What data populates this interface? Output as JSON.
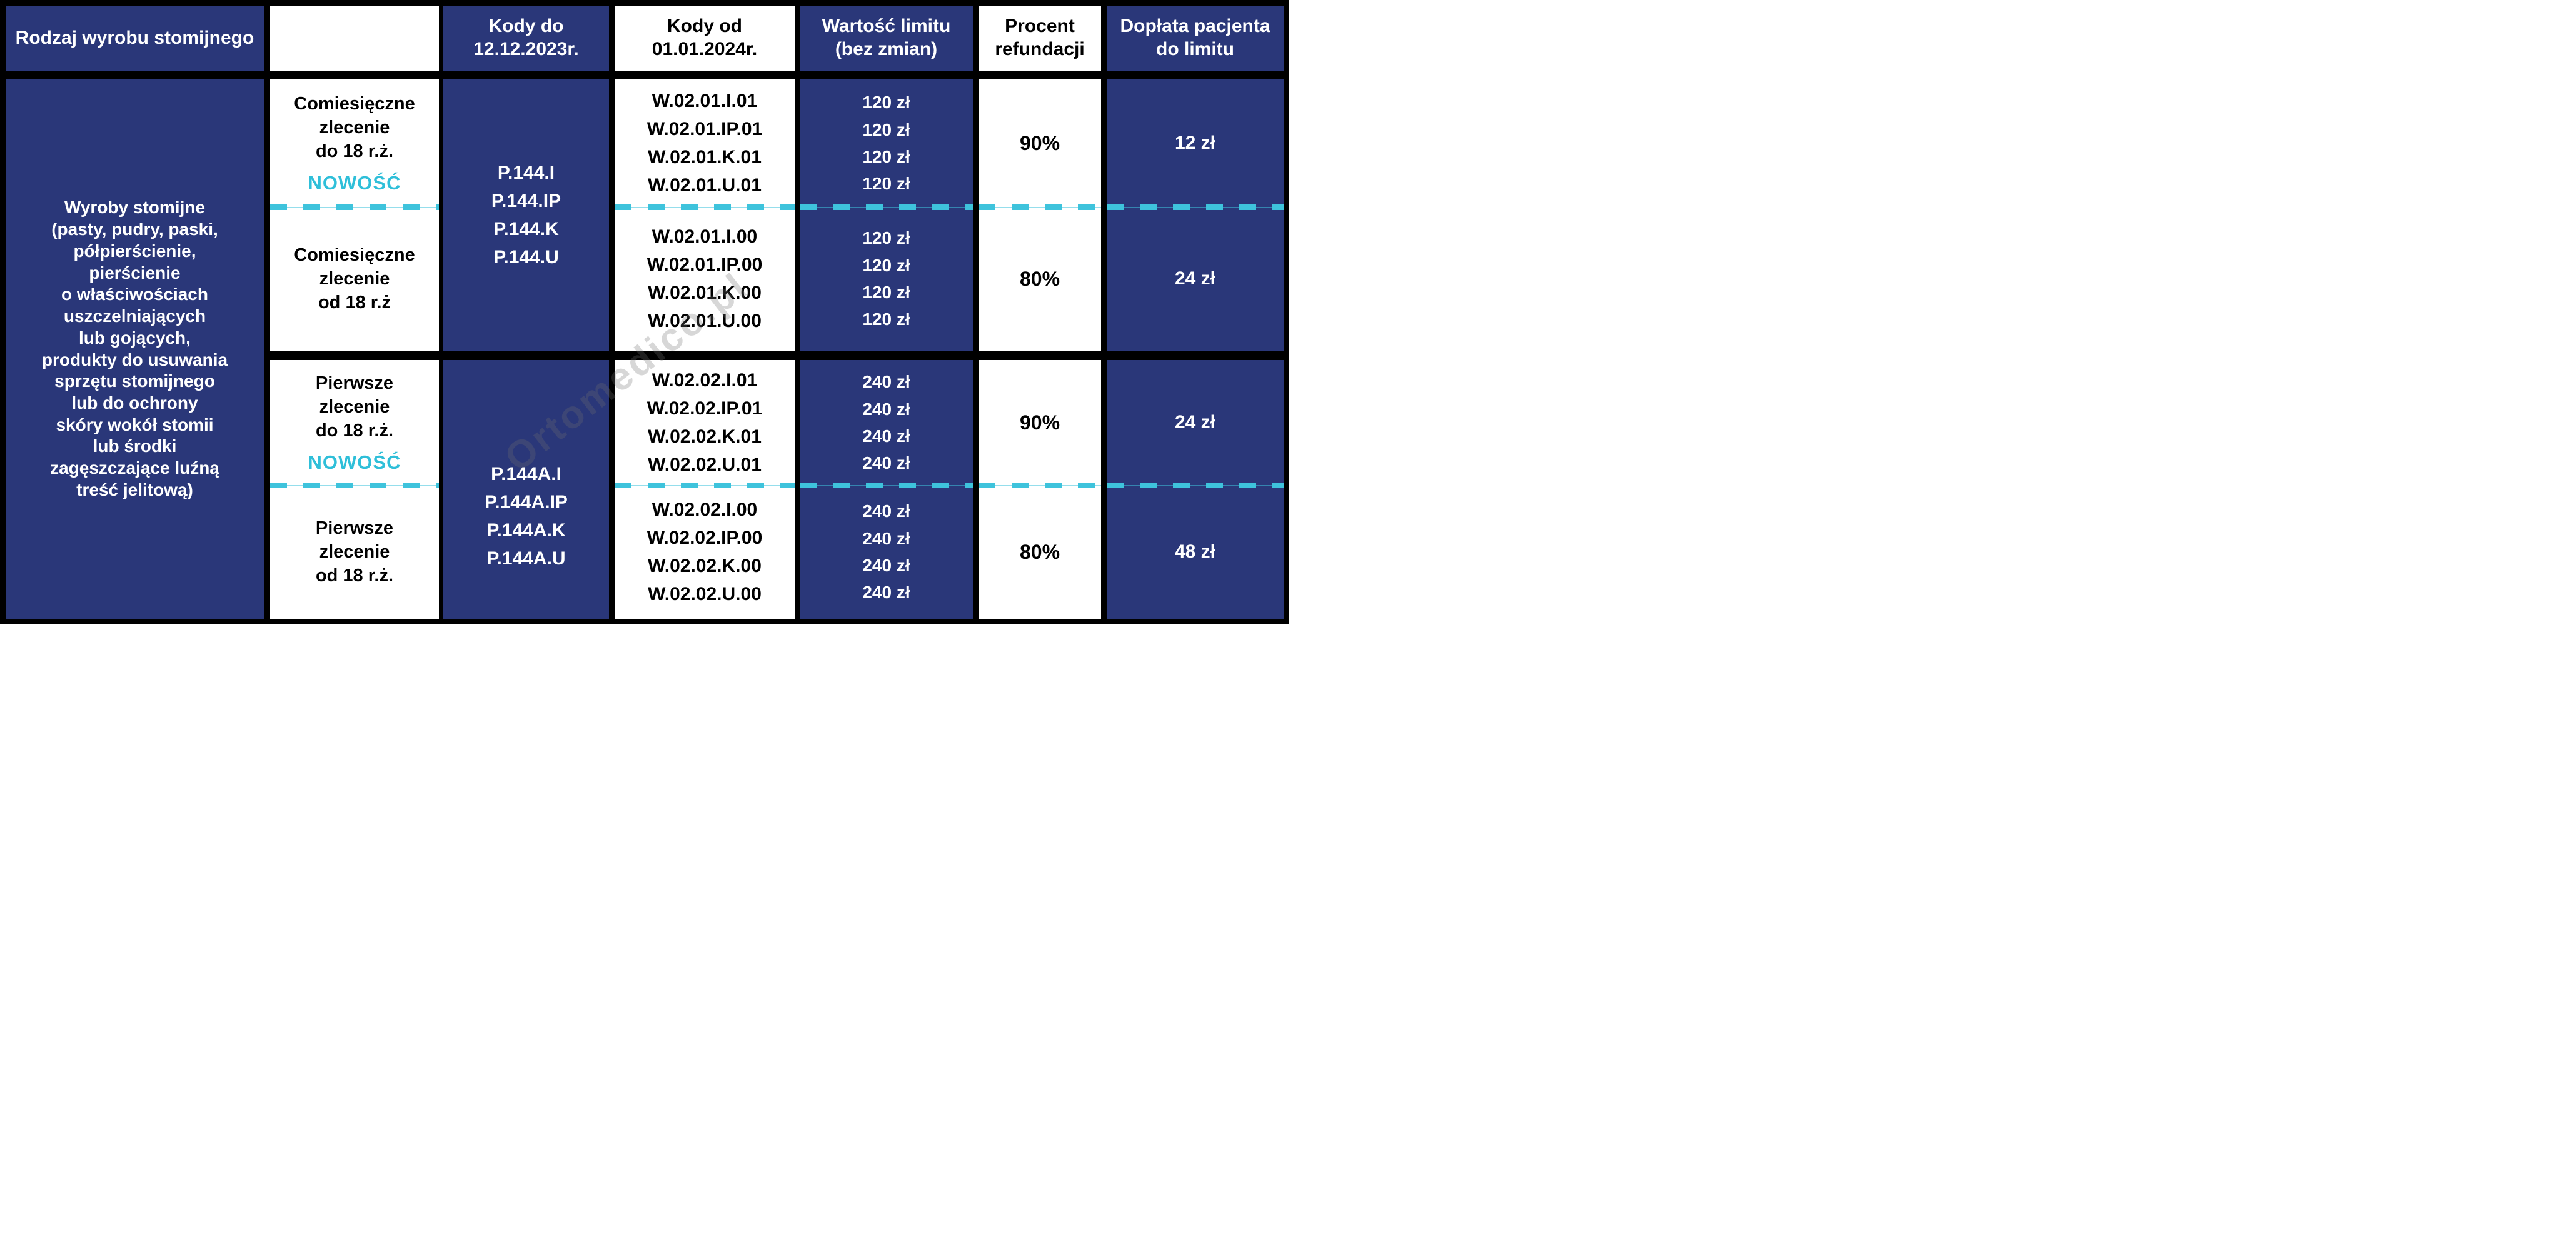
{
  "table": {
    "headers": {
      "product_type": "Rodzaj wyrobu stomijnego",
      "order_type": "",
      "codes_until": "Kody do 12.12.2023r.",
      "codes_from": "Kody od 01.01.2024r.",
      "limit_value": "Wartość limitu (bez zmian)",
      "refund_percent": "Procent refundacji",
      "patient_copay": "Dopłata pacjenta do limitu"
    },
    "product_category": "Wyroby stomijne\n(pasty, pudry, paski,\npółpierścienie,\npierścienie\no właściwościach\nuszczelniających\nlub gojących,\nprodukty do usuwania\nsprzętu stomijnego\nlub do ochrony\nskóry wokół stomii\nlub środki\nzagęszczające luźną\ntreść jelitową)",
    "sections": [
      {
        "codes_old": [
          "P.144.I",
          "P.144.IP",
          "P.144.K",
          "P.144.U"
        ],
        "rows": [
          {
            "order_type": "Comiesięczne\nzlecenie\ndo 18 r.ż.",
            "badge": "NOWOŚĆ",
            "codes_new": [
              "W.02.01.I.01",
              "W.02.01.IP.01",
              "W.02.01.K.01",
              "W.02.01.U.01"
            ],
            "limits": [
              "120 zł",
              "120 zł",
              "120 zł",
              "120 zł"
            ],
            "refund_percent": "90%",
            "patient_copay": "12 zł"
          },
          {
            "order_type": "Comiesięczne\nzlecenie\nod 18 r.ż",
            "badge": "",
            "codes_new": [
              "W.02.01.I.00",
              "W.02.01.IP.00",
              "W.02.01.K.00",
              "W.02.01.U.00"
            ],
            "limits": [
              "120 zł",
              "120 zł",
              "120 zł",
              "120 zł"
            ],
            "refund_percent": "80%",
            "patient_copay": "24 zł"
          }
        ]
      },
      {
        "codes_old": [
          "P.144A.I",
          "P.144A.IP",
          "P.144A.K",
          "P.144A.U"
        ],
        "rows": [
          {
            "order_type": "Pierwsze\nzlecenie\ndo 18 r.ż.",
            "badge": "NOWOŚĆ",
            "codes_new": [
              "W.02.02.I.01",
              "W.02.02.IP.01",
              "W.02.02.K.01",
              "W.02.02.U.01"
            ],
            "limits": [
              "240 zł",
              "240 zł",
              "240 zł",
              "240 zł"
            ],
            "refund_percent": "90%",
            "patient_copay": "24 zł"
          },
          {
            "order_type": "Pierwsze\nzlecenie\nod 18 r.ż.",
            "badge": "",
            "codes_new": [
              "W.02.02.I.00",
              "W.02.02.IP.00",
              "W.02.02.K.00",
              "W.02.02.U.00"
            ],
            "limits": [
              "240 zł",
              "240 zł",
              "240 zł",
              "240 zł"
            ],
            "refund_percent": "80%",
            "patient_copay": "48 zł"
          }
        ]
      }
    ]
  },
  "watermark": "Ortomedico.pl",
  "colors": {
    "navy": "#2a3779",
    "cyan_accent": "#2fbfd9",
    "dash_cyan": "#3ec3dc",
    "white": "#ffffff",
    "black": "#000000"
  }
}
